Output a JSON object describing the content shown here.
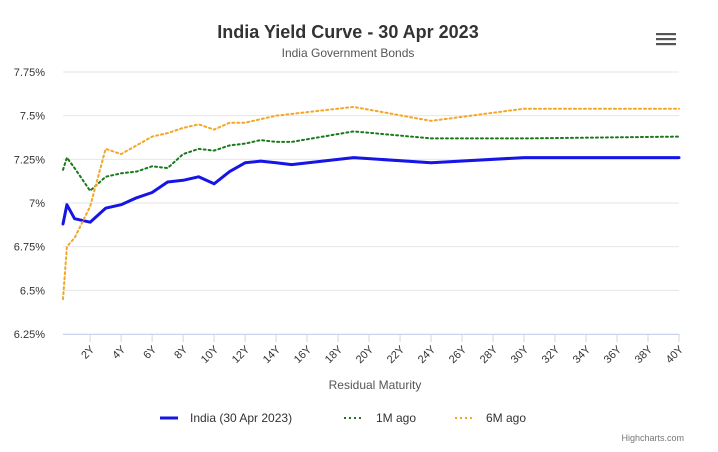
{
  "chart_data": {
    "type": "line",
    "title": "India Yield Curve - 30 Apr 2023",
    "subtitle": "India Government Bonds",
    "xlabel": "Residual Maturity",
    "ylabel": "",
    "x_unit": "years",
    "xlim": [
      0.25,
      40
    ],
    "ylim": [
      6.25,
      7.75
    ],
    "y_ticks": [
      6.25,
      6.5,
      6.75,
      7.0,
      7.25,
      7.5,
      7.75
    ],
    "y_tick_labels": [
      "6.25%",
      "6.5%",
      "6.75%",
      "7%",
      "7.25%",
      "7.5%",
      "7.75%"
    ],
    "x_ticks": [
      2,
      4,
      6,
      8,
      10,
      12,
      14,
      16,
      18,
      20,
      22,
      24,
      26,
      28,
      30,
      32,
      34,
      36,
      38,
      40
    ],
    "x_tick_labels": [
      "2Y",
      "4Y",
      "6Y",
      "8Y",
      "10Y",
      "12Y",
      "14Y",
      "16Y",
      "18Y",
      "20Y",
      "22Y",
      "24Y",
      "26Y",
      "28Y",
      "30Y",
      "32Y",
      "34Y",
      "36Y",
      "38Y",
      "40Y"
    ],
    "grid": true,
    "legend_position": "bottom-center",
    "credits": "Highcharts.com",
    "series": [
      {
        "name": "India (30 Apr 2023)",
        "color": "#1515e6",
        "style": "solid",
        "x": [
          0.25,
          0.5,
          1,
          2,
          3,
          4,
          5,
          6,
          7,
          8,
          9,
          10,
          11,
          12,
          13,
          14,
          15,
          19,
          24,
          30,
          40
        ],
        "values": [
          6.88,
          6.99,
          6.91,
          6.89,
          6.97,
          6.99,
          7.03,
          7.06,
          7.12,
          7.13,
          7.15,
          7.11,
          7.18,
          7.23,
          7.24,
          7.23,
          7.22,
          7.26,
          7.23,
          7.26,
          7.26
        ]
      },
      {
        "name": "1M ago",
        "color": "#1a7a1a",
        "style": "dotted",
        "x": [
          0.25,
          0.5,
          1,
          2,
          3,
          4,
          5,
          6,
          7,
          8,
          9,
          10,
          11,
          12,
          13,
          14,
          15,
          19,
          24,
          30,
          40
        ],
        "values": [
          7.19,
          7.26,
          7.2,
          7.07,
          7.15,
          7.17,
          7.18,
          7.21,
          7.2,
          7.28,
          7.31,
          7.3,
          7.33,
          7.34,
          7.36,
          7.35,
          7.35,
          7.41,
          7.37,
          7.37,
          7.38
        ]
      },
      {
        "name": "6M ago",
        "color": "#f5a623",
        "style": "dotted",
        "x": [
          0.25,
          0.5,
          1,
          2,
          3,
          4,
          5,
          6,
          7,
          8,
          9,
          10,
          11,
          12,
          13,
          14,
          15,
          19,
          24,
          30,
          40
        ],
        "values": [
          6.45,
          6.75,
          6.8,
          6.98,
          7.31,
          7.28,
          7.33,
          7.38,
          7.4,
          7.43,
          7.45,
          7.42,
          7.46,
          7.46,
          7.48,
          7.5,
          7.51,
          7.55,
          7.47,
          7.54,
          7.54
        ]
      }
    ]
  }
}
